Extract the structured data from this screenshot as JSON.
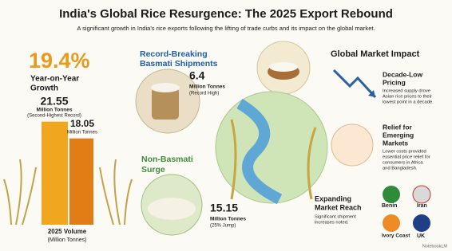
{
  "header": {
    "title": "India's Global Rice Resurgence: The 2025 Export Rebound",
    "subtitle": "A significant growth in India's rice exports following the lifting of trade curbs and its impact on the global market."
  },
  "growth": {
    "value_label": "19.4%",
    "label": [
      "Year-on-Year",
      "Growth"
    ]
  },
  "volume_chart": {
    "bars": [
      {
        "value": 21.55,
        "unit": "Million Tonnes",
        "note": "(Second-Highest Record)"
      },
      {
        "value": 18.05,
        "unit": "Million Tonnes"
      }
    ],
    "axis_label": [
      "2025 Volume",
      "(Million Tonnes)"
    ]
  },
  "basmati": {
    "title": [
      "Record-Breaking",
      "Basmati Shipments"
    ],
    "value": 6.4,
    "unit": "Million Tonnes",
    "note": "(Record High)"
  },
  "non_basmati": {
    "title": [
      "Non-Basmati",
      "Surge"
    ],
    "value": 15.15,
    "unit": "Million Tonnes",
    "note": "(25% Jump)"
  },
  "market_impact": {
    "title": "Global Market Impact",
    "items": [
      {
        "title": [
          "Decade-Low",
          "Pricing"
        ],
        "text": [
          "Increased supply drove",
          "Asian rice prices to their",
          "lowest point in a decade."
        ]
      },
      {
        "title": [
          "Relief for",
          "Emerging",
          "Markets"
        ],
        "text": [
          "Lower costs provided",
          "essential price relief for",
          "consumers in Africa",
          "and Bangladesh."
        ]
      },
      {
        "title": [
          "Expanding",
          "Market Reach"
        ],
        "text": [
          "Significant shipment",
          "increases noted."
        ]
      }
    ],
    "countries": [
      "Benin",
      "Iran",
      "Ivory Coast",
      "UK"
    ]
  },
  "footer": "NotebookLM"
}
